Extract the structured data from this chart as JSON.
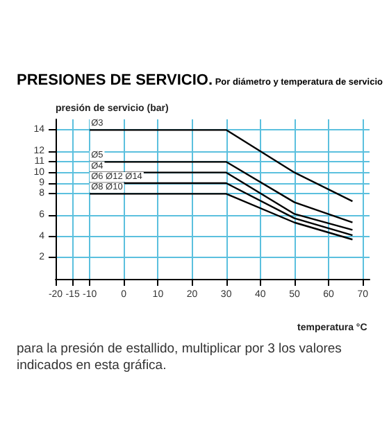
{
  "chart_data": {
    "type": "line",
    "title": "PRESIONES DE SERVICIO.",
    "subtitle": "Por diámetro y temperatura de servicio",
    "xlabel": "temperatura °C",
    "ylabel": "presión de servicio (bar)",
    "annotations": [
      "para la presión de estallido, multiplicar por 3 los valores indicados en esta gráfica."
    ],
    "x": [
      -10,
      30,
      50,
      67
    ],
    "series": [
      {
        "name": "Ø3",
        "color": "#000000",
        "values": [
          14,
          14,
          10,
          7.3
        ]
      },
      {
        "name": "Ø5",
        "color": "#000000",
        "values": [
          11,
          11,
          7.2,
          5.3
        ]
      },
      {
        "name": "Ø4",
        "color": "#000000",
        "values": [
          10,
          10,
          6.1,
          4.6
        ]
      },
      {
        "name": "Ø6 Ø12 Ø14",
        "color": "#000000",
        "values": [
          9,
          9,
          5.7,
          4.1
        ]
      },
      {
        "name": "Ø8 Ø10",
        "color": "#000000",
        "values": [
          8,
          8,
          5.3,
          3.7
        ]
      }
    ],
    "xlim": [
      -20,
      72
    ],
    "xticks": [
      -20,
      -15,
      -10,
      0,
      10,
      20,
      30,
      40,
      50,
      60,
      70
    ],
    "ylim": [
      0,
      15
    ],
    "yticks": [
      2,
      4,
      6,
      8,
      9,
      10,
      11,
      12,
      14
    ],
    "grid": true,
    "legend": false,
    "marker": "none",
    "line_style": "solid"
  }
}
